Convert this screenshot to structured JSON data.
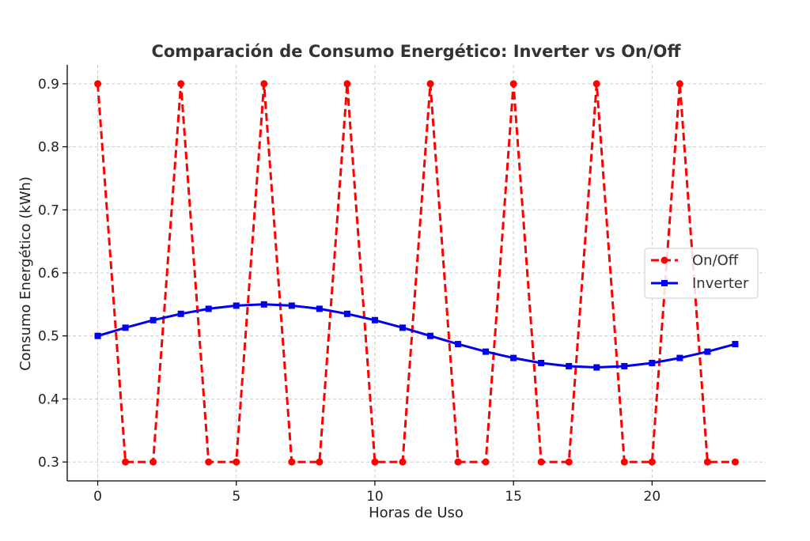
{
  "chart_data": {
    "type": "line",
    "title": "Comparación de Consumo Energético: Inverter vs On/Off",
    "xlabel": "Horas de Uso",
    "ylabel": "Consumo Energético (kWh)",
    "xlim": [
      -1.1,
      24.1
    ],
    "ylim": [
      0.27,
      0.93
    ],
    "xticks": [
      0,
      5,
      10,
      15,
      20
    ],
    "xtick_labels": [
      "0",
      "5",
      "10",
      "15",
      "20"
    ],
    "yticks": [
      0.3,
      0.4,
      0.5,
      0.6,
      0.7,
      0.8,
      0.9
    ],
    "ytick_labels": [
      "0.3",
      "0.4",
      "0.5",
      "0.6",
      "0.7",
      "0.8",
      "0.9"
    ],
    "grid": true,
    "legend_position": "center-right",
    "x": [
      0,
      1,
      2,
      3,
      4,
      5,
      6,
      7,
      8,
      9,
      10,
      11,
      12,
      13,
      14,
      15,
      16,
      17,
      18,
      19,
      20,
      21,
      22,
      23
    ],
    "series": [
      {
        "name": "On/Off",
        "color": "#ff0000",
        "line_style": "dashed",
        "marker": "circle",
        "values": [
          0.9,
          0.3,
          0.3,
          0.9,
          0.3,
          0.3,
          0.9,
          0.3,
          0.3,
          0.9,
          0.3,
          0.3,
          0.9,
          0.3,
          0.3,
          0.9,
          0.3,
          0.3,
          0.9,
          0.3,
          0.3,
          0.9,
          0.3,
          0.3
        ]
      },
      {
        "name": "Inverter",
        "color": "#0000ee",
        "line_style": "solid",
        "marker": "square",
        "values": [
          0.5,
          0.513,
          0.525,
          0.535,
          0.543,
          0.548,
          0.55,
          0.548,
          0.543,
          0.535,
          0.525,
          0.513,
          0.5,
          0.487,
          0.475,
          0.465,
          0.457,
          0.452,
          0.45,
          0.452,
          0.457,
          0.465,
          0.475,
          0.487
        ]
      }
    ]
  }
}
